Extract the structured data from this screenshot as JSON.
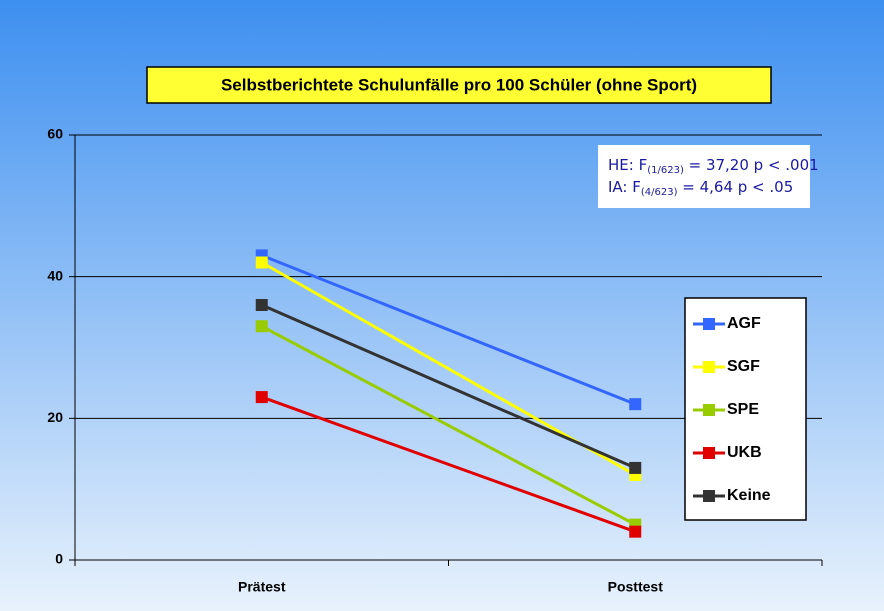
{
  "chart_data": {
    "type": "line",
    "title": "Selbstberichtete Schulunfälle pro 100 Schüler (ohne Sport)",
    "categories": [
      "Prätest",
      "Posttest"
    ],
    "series": [
      {
        "name": "AGF",
        "color": "#3366ff",
        "values": [
          43,
          22
        ]
      },
      {
        "name": "SGF",
        "color": "#ffff00",
        "values": [
          42,
          12
        ]
      },
      {
        "name": "SPE",
        "color": "#99cc00",
        "values": [
          33,
          5
        ]
      },
      {
        "name": "UKB",
        "color": "#e00000",
        "values": [
          23,
          4
        ]
      },
      {
        "name": "Keine",
        "color": "#333333",
        "values": [
          36,
          13
        ]
      }
    ],
    "ylim": [
      0,
      60
    ],
    "yticks": [
      0,
      20,
      40,
      60
    ],
    "grid": true,
    "legend": "right",
    "annotations": [
      {
        "before": "HE: F",
        "subscript": "(1/623)",
        "after": " = 37,20  p < .001"
      },
      {
        "before": "IA: F",
        "subscript": "(4/623)",
        "after": " = 4,64    p < .05"
      }
    ]
  }
}
